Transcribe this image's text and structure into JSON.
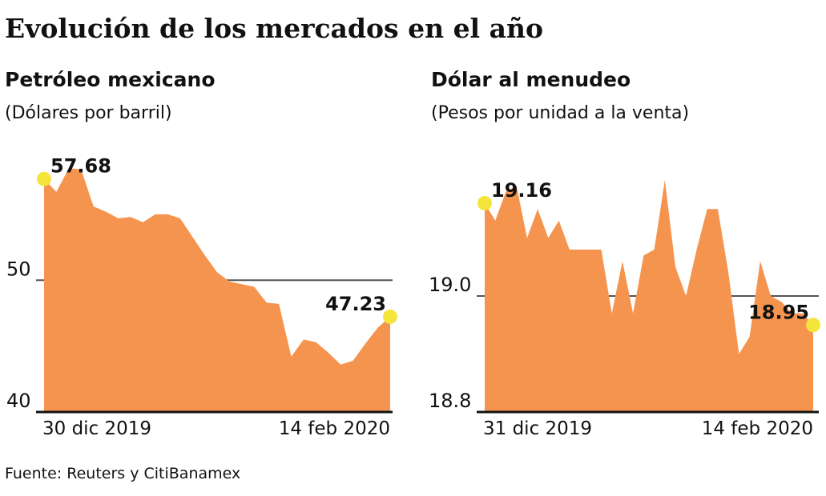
{
  "title": "Evolución de los mercados en el año",
  "source": "Fuente: Reuters y CitiBanamex",
  "chart_data": [
    {
      "type": "area",
      "title": "Petróleo mexicano",
      "subtitle": "(Dólares por barril)",
      "categories": [
        "30 dic 2019",
        null,
        null,
        null,
        null,
        null,
        null,
        null,
        null,
        null,
        null,
        null,
        null,
        null,
        null,
        null,
        null,
        null,
        null,
        null,
        null,
        null,
        null,
        null,
        null,
        null,
        null,
        null,
        "14 feb 2020"
      ],
      "values": [
        57.68,
        56.7,
        58.5,
        58.4,
        55.6,
        55.2,
        54.7,
        54.8,
        54.4,
        55.0,
        55.0,
        54.7,
        53.3,
        51.9,
        50.6,
        49.9,
        49.7,
        49.5,
        48.3,
        48.2,
        44.2,
        45.5,
        45.3,
        44.5,
        43.6,
        43.9,
        45.2,
        46.4,
        47.23
      ],
      "color": "#f4944f",
      "marker_color": "#f5e53b",
      "ylim": [
        40,
        59
      ],
      "yticks": [
        40,
        50
      ],
      "grid": true
    },
    {
      "type": "area",
      "title": "Dólar al menudeo",
      "subtitle": "(Pesos por unidad a la venta)",
      "categories": [
        "31 dic 2019",
        null,
        null,
        null,
        null,
        null,
        null,
        null,
        null,
        null,
        null,
        null,
        null,
        null,
        null,
        null,
        null,
        null,
        null,
        null,
        null,
        null,
        null,
        null,
        null,
        null,
        null,
        null,
        null,
        null,
        null,
        "14 feb 2020"
      ],
      "values": [
        19.16,
        19.13,
        19.18,
        19.19,
        19.1,
        19.15,
        19.1,
        19.13,
        19.08,
        19.08,
        19.08,
        19.08,
        18.97,
        19.06,
        18.97,
        19.07,
        19.08,
        19.2,
        19.05,
        19.0,
        19.08,
        19.15,
        19.15,
        19.04,
        18.9,
        18.93,
        19.06,
        19.0,
        18.99,
        18.97,
        18.97,
        18.95
      ],
      "color": "#f4944f",
      "marker_color": "#f5e53b",
      "ylim": [
        18.8,
        19.2
      ],
      "yticks": [
        18.8,
        {
          "value": 19,
          "label": "19.0"
        }
      ],
      "grid": true
    }
  ]
}
